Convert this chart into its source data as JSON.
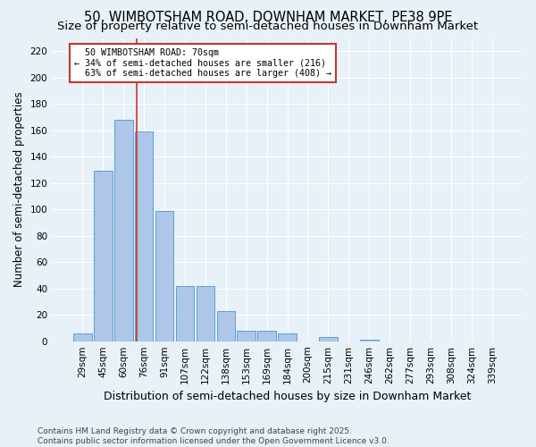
{
  "title": "50, WIMBOTSHAM ROAD, DOWNHAM MARKET, PE38 9PE",
  "subtitle": "Size of property relative to semi-detached houses in Downham Market",
  "xlabel": "Distribution of semi-detached houses by size in Downham Market",
  "ylabel": "Number of semi-detached properties",
  "categories": [
    "29sqm",
    "45sqm",
    "60sqm",
    "76sqm",
    "91sqm",
    "107sqm",
    "122sqm",
    "138sqm",
    "153sqm",
    "169sqm",
    "184sqm",
    "200sqm",
    "215sqm",
    "231sqm",
    "246sqm",
    "262sqm",
    "277sqm",
    "293sqm",
    "308sqm",
    "324sqm",
    "339sqm"
  ],
  "values": [
    6,
    129,
    168,
    159,
    99,
    42,
    42,
    23,
    8,
    8,
    6,
    0,
    3,
    0,
    1,
    0,
    0,
    0,
    0,
    0,
    0
  ],
  "bar_color": "#aec6e8",
  "bar_edge_color": "#5a9fd4",
  "bar_edge_width": 0.7,
  "vline_x": 2.65,
  "vline_color": "#c0392b",
  "vline_label": "50 WIMBOTSHAM ROAD: 70sqm",
  "smaller_pct": "34%",
  "smaller_count": 216,
  "larger_pct": "63%",
  "larger_count": 408,
  "annotation_box_color": "#c0392b",
  "ylim": [
    0,
    230
  ],
  "yticks": [
    0,
    20,
    40,
    60,
    80,
    100,
    120,
    140,
    160,
    180,
    200,
    220
  ],
  "background_color": "#e8f0f8",
  "plot_bg_color": "#e8f0f8",
  "footer": "Contains HM Land Registry data © Crown copyright and database right 2025.\nContains public sector information licensed under the Open Government Licence v3.0.",
  "title_fontsize": 10.5,
  "subtitle_fontsize": 9.5,
  "xlabel_fontsize": 9,
  "ylabel_fontsize": 8.5,
  "tick_fontsize": 7.5,
  "footer_fontsize": 6.5
}
